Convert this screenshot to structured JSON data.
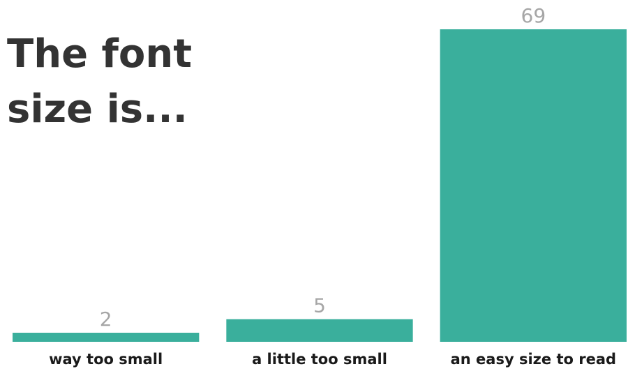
{
  "chart_data": {
    "type": "bar",
    "title_lines": [
      "The font",
      "size is..."
    ],
    "categories": [
      "way too small",
      "a little too small",
      "an easy size to read"
    ],
    "values": [
      2,
      5,
      69
    ],
    "xlabel": "",
    "ylabel": "",
    "ylim": [
      0,
      69
    ],
    "grid": false,
    "legend": "none",
    "bar_color": "#3aaf9c",
    "value_label_color": "#a6a6a6",
    "title_color": "#333333"
  }
}
